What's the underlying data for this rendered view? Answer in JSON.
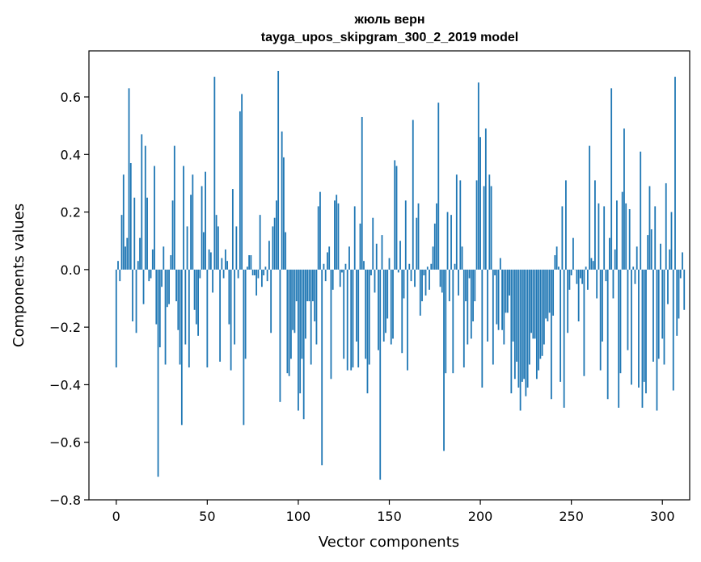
{
  "chart_data": {
    "type": "bar",
    "title_line1": "жюль верн",
    "title_line2": "tayga_upos_skipgram_300_2_2019 model",
    "xlabel": "Vector components",
    "ylabel": "Components values",
    "xlim": [
      -15,
      315
    ],
    "ylim": [
      -0.8,
      0.76
    ],
    "xticks": [
      0,
      50,
      100,
      150,
      200,
      250,
      300
    ],
    "xtick_labels": [
      "0",
      "50",
      "100",
      "150",
      "200",
      "250",
      "300"
    ],
    "yticks": [
      -0.8,
      -0.6,
      -0.4,
      -0.2,
      0.0,
      0.2,
      0.4,
      0.6
    ],
    "ytick_labels": [
      "−0.8",
      "−0.6",
      "−0.4",
      "−0.2",
      "0.0",
      "0.2",
      "0.4",
      "0.6"
    ],
    "bar_color": "#1f77b4",
    "values": [
      -0.34,
      0.03,
      -0.04,
      0.19,
      0.33,
      0.08,
      0.11,
      0.63,
      0.37,
      -0.18,
      0.25,
      -0.22,
      0.03,
      0.11,
      0.47,
      -0.12,
      0.43,
      0.25,
      -0.04,
      -0.03,
      0.07,
      0.36,
      -0.19,
      -0.72,
      -0.27,
      -0.06,
      0.08,
      -0.33,
      -0.13,
      -0.12,
      0.05,
      0.24,
      0.43,
      -0.11,
      -0.21,
      -0.33,
      -0.54,
      0.36,
      -0.26,
      0.15,
      -0.34,
      0.26,
      0.33,
      -0.14,
      -0.19,
      -0.23,
      -0.03,
      0.29,
      0.13,
      0.34,
      -0.34,
      0.07,
      0.06,
      -0.08,
      0.67,
      0.19,
      0.15,
      -0.32,
      0.04,
      -0.03,
      0.07,
      0.03,
      -0.19,
      -0.35,
      0.28,
      -0.26,
      0.15,
      -0.03,
      0.55,
      0.61,
      -0.54,
      -0.31,
      0.01,
      0.05,
      0.05,
      -0.02,
      -0.02,
      -0.09,
      -0.03,
      0.19,
      -0.06,
      -0.02,
      0.01,
      -0.04,
      0.1,
      -0.22,
      0.15,
      0.18,
      0.24,
      0.69,
      -0.46,
      0.48,
      0.39,
      0.13,
      -0.36,
      -0.37,
      -0.31,
      -0.21,
      -0.22,
      -0.11,
      -0.49,
      -0.43,
      -0.31,
      -0.52,
      -0.24,
      -0.11,
      -0.11,
      -0.33,
      -0.11,
      -0.18,
      -0.26,
      0.22,
      0.27,
      -0.68,
      0.02,
      -0.04,
      0.06,
      0.08,
      -0.38,
      -0.07,
      0.24,
      0.26,
      0.23,
      -0.06,
      -0.01,
      -0.31,
      0.02,
      -0.35,
      0.08,
      -0.35,
      -0.34,
      0.22,
      -0.25,
      -0.34,
      0.16,
      0.53,
      0.03,
      -0.31,
      -0.43,
      -0.33,
      -0.02,
      0.18,
      -0.08,
      0.09,
      -0.28,
      -0.73,
      0.12,
      -0.25,
      -0.22,
      -0.17,
      0.04,
      -0.26,
      -0.24,
      0.38,
      0.36,
      -0.01,
      0.1,
      -0.29,
      -0.1,
      0.24,
      -0.35,
      0.02,
      -0.04,
      0.52,
      -0.06,
      0.18,
      0.23,
      -0.16,
      -0.11,
      -0.02,
      -0.09,
      0.01,
      -0.07,
      0.02,
      0.08,
      0.16,
      0.23,
      0.58,
      -0.06,
      -0.08,
      -0.63,
      -0.36,
      0.2,
      -0.11,
      0.19,
      -0.36,
      0.02,
      0.33,
      -0.09,
      0.31,
      0.08,
      -0.34,
      -0.11,
      -0.26,
      -0.03,
      -0.24,
      -0.18,
      -0.11,
      0.31,
      0.65,
      0.46,
      -0.41,
      0.29,
      0.49,
      -0.25,
      0.33,
      0.29,
      -0.33,
      -0.02,
      -0.19,
      -0.21,
      0.04,
      -0.21,
      -0.26,
      -0.15,
      -0.15,
      -0.09,
      -0.43,
      -0.25,
      -0.38,
      -0.32,
      -0.41,
      -0.49,
      -0.39,
      -0.38,
      -0.44,
      -0.41,
      -0.33,
      -0.22,
      -0.24,
      -0.24,
      -0.38,
      -0.35,
      -0.31,
      -0.3,
      -0.26,
      -0.17,
      -0.18,
      -0.15,
      -0.45,
      -0.16,
      0.05,
      0.08,
      0.01,
      -0.39,
      0.22,
      -0.48,
      0.31,
      -0.22,
      -0.07,
      -0.02,
      0.11,
      0.0,
      -0.05,
      -0.18,
      -0.03,
      -0.05,
      -0.37,
      0.01,
      -0.07,
      0.43,
      0.04,
      0.03,
      0.31,
      -0.1,
      0.23,
      -0.35,
      -0.25,
      0.22,
      -0.04,
      -0.45,
      0.11,
      0.63,
      -0.1,
      0.07,
      0.24,
      -0.48,
      -0.36,
      0.27,
      0.49,
      0.23,
      -0.28,
      0.21,
      -0.4,
      0.01,
      -0.05,
      0.08,
      -0.41,
      0.41,
      -0.48,
      -0.39,
      -0.43,
      0.12,
      0.29,
      0.14,
      -0.32,
      0.22,
      -0.49,
      -0.31,
      0.09,
      -0.24,
      -0.33,
      0.3,
      -0.12,
      0.07,
      0.2,
      -0.42,
      0.67,
      -0.23,
      -0.17,
      -0.03,
      0.06,
      -0.14
    ]
  }
}
